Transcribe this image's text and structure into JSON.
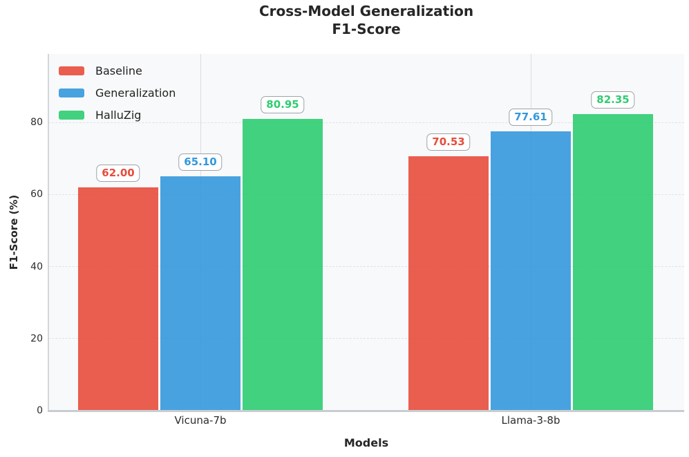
{
  "chart_data": {
    "type": "bar",
    "title": "Cross-Model Generalization\nF1-Score",
    "xlabel": "Models",
    "ylabel": "F1-Score (%)",
    "categories": [
      "Vicuna-7b",
      "Llama-3-8b"
    ],
    "series": [
      {
        "name": "Baseline",
        "color": "#E74C3C",
        "values": [
          62.0,
          70.53
        ]
      },
      {
        "name": "Generalization",
        "color": "#3498DB",
        "values": [
          65.1,
          77.61
        ]
      },
      {
        "name": "HalluZig",
        "color": "#2ECC71",
        "values": [
          80.95,
          82.35
        ]
      }
    ],
    "bar_alpha": 0.9,
    "value_label_decimals": 2,
    "y_ticks": [
      0,
      20,
      40,
      60,
      80
    ],
    "ylim": [
      0,
      99
    ],
    "grid": {
      "horizontal": "dashed",
      "vertical": "solid"
    },
    "legend_position": "upper-left",
    "plot_background": "#F8F9FA",
    "label_box_border": "#9EA3A8"
  }
}
